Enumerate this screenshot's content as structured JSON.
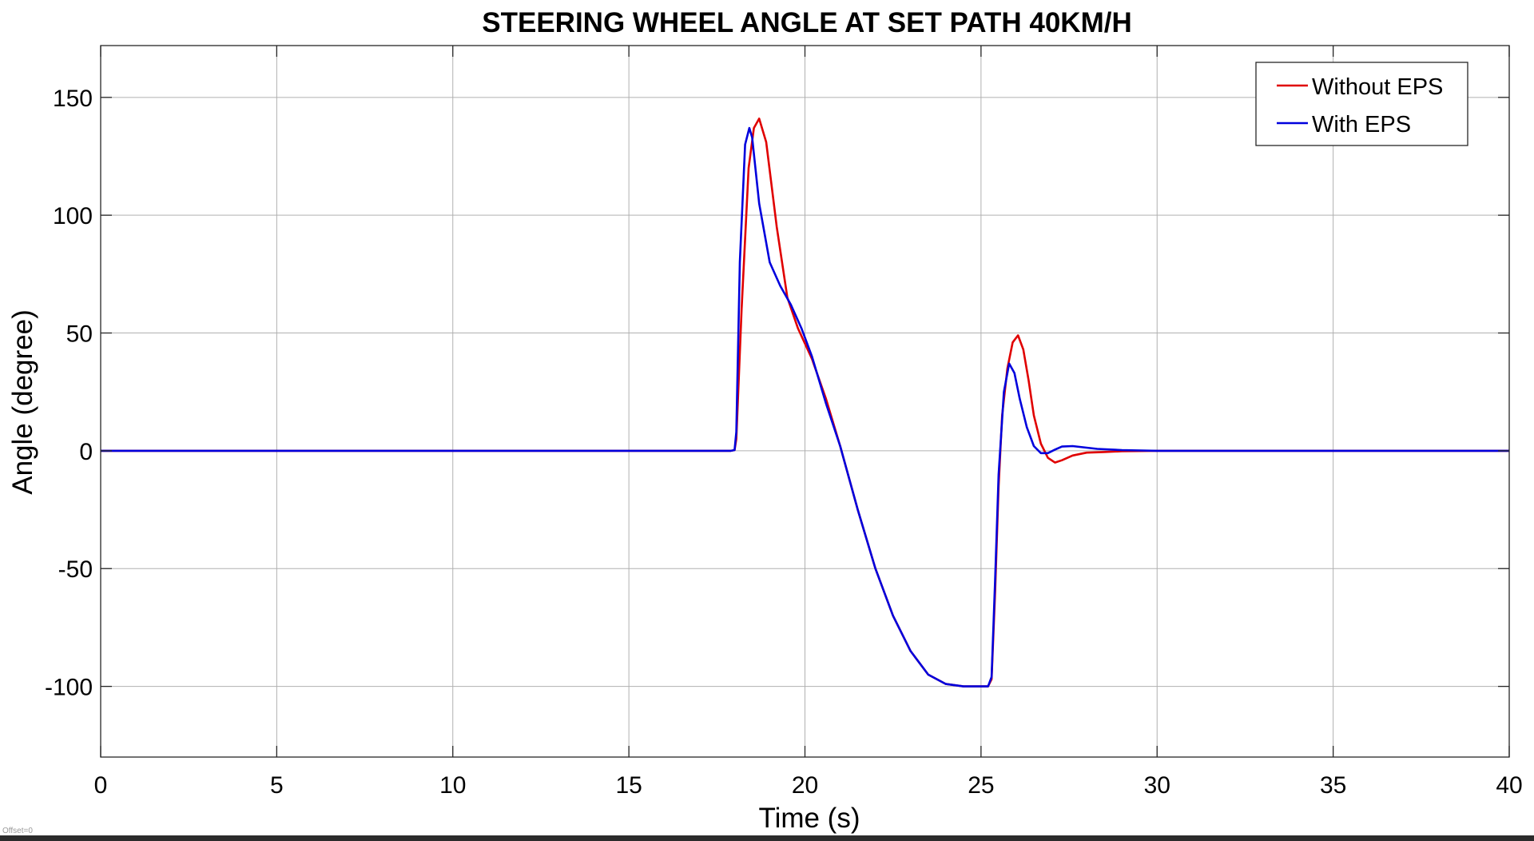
{
  "chart_data": {
    "type": "line",
    "title": "STEERING WHEEL ANGLE AT SET PATH 40KM/H",
    "xlabel": "Time (s)",
    "ylabel": "Angle (degree)",
    "xlim": [
      0,
      40
    ],
    "ylim": [
      -130,
      172
    ],
    "xticks": [
      0,
      5,
      10,
      15,
      20,
      25,
      30,
      35,
      40
    ],
    "yticks": [
      -100,
      -50,
      0,
      50,
      100,
      150
    ],
    "xtick_labels": [
      "0",
      "5",
      "10",
      "15",
      "20",
      "25",
      "30",
      "35",
      "40"
    ],
    "ytick_labels": [
      "-100",
      "-50",
      "0",
      "50",
      "100",
      "150"
    ],
    "grid": true,
    "legend_position": "top-right",
    "series": [
      {
        "name": "Without EPS",
        "color": "#e00000",
        "x": [
          0,
          17.9,
          18.0,
          18.05,
          18.2,
          18.4,
          18.55,
          18.7,
          18.9,
          19.2,
          19.5,
          19.8,
          20.2,
          20.6,
          21.0,
          21.5,
          22.0,
          22.5,
          23.0,
          23.5,
          24.0,
          24.5,
          25.0,
          25.2,
          25.3,
          25.4,
          25.5,
          25.6,
          25.75,
          25.9,
          26.05,
          26.2,
          26.35,
          26.5,
          26.7,
          26.9,
          27.1,
          27.3,
          27.6,
          28.0,
          28.5,
          29.0,
          30.0,
          35.0,
          40.0
        ],
        "y": [
          0,
          0,
          0.3,
          5,
          60,
          120,
          137,
          141,
          131,
          95,
          65,
          52,
          39,
          22,
          2,
          -25,
          -50,
          -70,
          -85,
          -95,
          -99,
          -100,
          -100,
          -100,
          -97,
          -60,
          -15,
          15,
          35,
          46,
          49,
          43,
          30,
          15,
          3,
          -3,
          -5,
          -4,
          -2,
          -0.8,
          -0.5,
          -0.2,
          0,
          0,
          0
        ]
      },
      {
        "name": "With EPS",
        "color": "#0000dd",
        "x": [
          0,
          17.9,
          18.0,
          18.05,
          18.15,
          18.3,
          18.42,
          18.5,
          18.7,
          19.0,
          19.3,
          19.6,
          19.9,
          20.2,
          20.6,
          21.0,
          21.5,
          22.0,
          22.5,
          23.0,
          23.5,
          24.0,
          24.5,
          25.0,
          25.2,
          25.3,
          25.4,
          25.5,
          25.65,
          25.8,
          25.95,
          26.1,
          26.3,
          26.5,
          26.7,
          26.9,
          27.1,
          27.3,
          27.6,
          27.9,
          28.3,
          29.0,
          30.0,
          35.0,
          40.0
        ],
        "y": [
          0,
          0,
          0.3,
          8,
          80,
          130,
          137,
          133,
          105,
          80,
          70,
          62,
          52,
          40,
          20,
          2,
          -25,
          -50,
          -70,
          -85,
          -95,
          -99,
          -100,
          -100,
          -100,
          -96,
          -55,
          -10,
          25,
          37,
          33,
          22,
          10,
          2,
          -1,
          -1,
          0.5,
          1.8,
          2,
          1.5,
          0.8,
          0.3,
          0,
          0,
          0
        ]
      }
    ]
  },
  "footer": {
    "offset_text": "Offset=0"
  }
}
